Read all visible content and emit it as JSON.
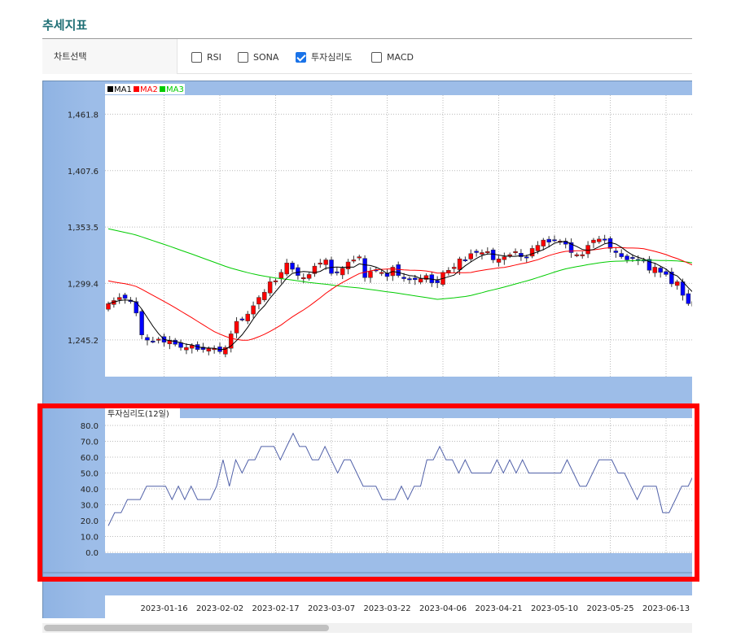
{
  "page_title": "추세지표",
  "selector": {
    "label": "차트선택",
    "options": [
      {
        "label": "RSI",
        "checked": false
      },
      {
        "label": "SONA",
        "checked": false
      },
      {
        "label": "투자심리도",
        "checked": true
      },
      {
        "label": "MACD",
        "checked": false
      }
    ]
  },
  "colors": {
    "up_candle": "#ff0000",
    "down_candle": "#0000ff",
    "ma1": "#000000",
    "ma2": "#ff0000",
    "ma3": "#00cc00",
    "psych_line": "#5060a8",
    "highlight": "#ff0000"
  },
  "chart_data": [
    {
      "type": "candlestick",
      "legend": [
        "MA1",
        "MA2",
        "MA3"
      ],
      "y_ticks": [
        "1,461.8",
        "1,407.6",
        "1,353.5",
        "1,299.4",
        "1,245.2"
      ],
      "y_tick_values": [
        1461.8,
        1407.6,
        1353.5,
        1299.4,
        1245.2
      ],
      "x_ticks": [
        "2023-01-16",
        "2023-02-02",
        "2023-02-17",
        "2023-03-07",
        "2023-03-22",
        "2023-04-06",
        "2023-04-21",
        "2023-05-10",
        "2023-05-25",
        "2023-06-13"
      ],
      "x_tick_index": [
        10,
        20,
        30,
        40,
        50,
        60,
        70,
        80,
        90,
        100
      ],
      "ylim": [
        1210,
        1480
      ],
      "close": [
        1280,
        1283,
        1286,
        1285,
        1282,
        1271,
        1250,
        1245,
        1244,
        1246,
        1243,
        1245,
        1241,
        1238,
        1238,
        1240,
        1236,
        1236,
        1237,
        1237,
        1234,
        1238,
        1251,
        1263,
        1265,
        1270,
        1278,
        1286,
        1291,
        1301,
        1302,
        1310,
        1319,
        1313,
        1307,
        1305,
        1308,
        1316,
        1319,
        1322,
        1309,
        1310,
        1314,
        1320,
        1322,
        1325,
        1305,
        1311,
        1312,
        1310,
        1306,
        1315,
        1307,
        1304,
        1303,
        1303,
        1304,
        1307,
        1300,
        1300,
        1310,
        1312,
        1315,
        1323,
        1322,
        1328,
        1329,
        1329,
        1330,
        1322,
        1323,
        1325,
        1327,
        1330,
        1325,
        1324,
        1333,
        1336,
        1341,
        1339,
        1341,
        1340,
        1337,
        1329,
        1327,
        1327,
        1336,
        1341,
        1342,
        1341,
        1333,
        1329,
        1325,
        1322,
        1324,
        1322,
        1321,
        1312,
        1315,
        1310,
        1308,
        1299,
        1301,
        1288,
        1280,
        1282,
        1286,
        1289
      ],
      "ma_first_value": {
        "MA2": 1303,
        "MA3": 1353
      }
    },
    {
      "type": "line",
      "title": "투자심리도(12일)",
      "y_ticks": [
        "80.0",
        "70.0",
        "60.0",
        "50.0",
        "40.0",
        "30.0",
        "20.0",
        "10.0",
        "0.0"
      ],
      "y_tick_values": [
        80,
        70,
        60,
        50,
        40,
        30,
        20,
        10,
        0
      ],
      "ylim": [
        0,
        80
      ],
      "x_ticks": [
        "2023-01-16",
        "2023-02-02",
        "2023-02-17",
        "2023-03-07",
        "2023-03-22",
        "2023-04-06",
        "2023-04-21",
        "2023-05-10",
        "2023-05-25",
        "2023-06-13"
      ],
      "values": [
        16.7,
        25,
        25,
        33.3,
        33.3,
        33.3,
        41.7,
        41.7,
        41.7,
        41.7,
        33.3,
        41.7,
        33.3,
        41.7,
        33.3,
        33.3,
        33.3,
        41.7,
        58.3,
        41.7,
        58.3,
        50,
        58.3,
        58.3,
        66.7,
        66.7,
        66.7,
        58.3,
        66.7,
        75,
        66.7,
        66.7,
        58.3,
        58.3,
        66.7,
        58.3,
        50,
        58.3,
        58.3,
        50,
        41.7,
        41.7,
        41.7,
        33.3,
        33.3,
        33.3,
        41.7,
        33.3,
        41.7,
        41.7,
        58.3,
        58.3,
        66.7,
        58.3,
        58.3,
        50,
        58.3,
        50,
        50,
        50,
        50,
        58.3,
        50,
        58.3,
        50,
        58.3,
        50,
        50,
        50,
        50,
        50,
        50,
        58.3,
        50,
        41.7,
        41.7,
        50,
        58.3,
        58.3,
        58.3,
        50,
        50,
        41.7,
        33.3,
        41.7,
        41.7,
        41.7,
        25,
        25,
        33.3,
        41.7,
        41.7,
        50
      ]
    }
  ]
}
